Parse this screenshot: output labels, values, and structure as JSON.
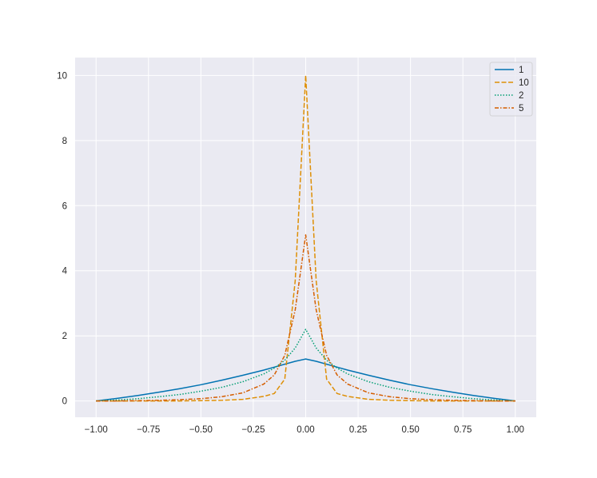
{
  "chart_data": {
    "type": "line",
    "title": "",
    "xlabel": "",
    "ylabel": "",
    "xlim": [
      -1.1,
      1.1
    ],
    "ylim": [
      -0.5,
      10.55
    ],
    "xticks": [
      -1.0,
      -0.75,
      -0.5,
      -0.25,
      0.0,
      0.25,
      0.5,
      0.75,
      1.0
    ],
    "xtick_labels": [
      "−1.00",
      "−0.75",
      "−0.50",
      "−0.25",
      "0.00",
      "0.25",
      "0.50",
      "0.75",
      "1.00"
    ],
    "yticks": [
      0,
      2,
      4,
      6,
      8,
      10
    ],
    "ytick_labels": [
      "0",
      "2",
      "4",
      "6",
      "8",
      "10"
    ],
    "grid": true,
    "background": "#eaeaf2",
    "grid_color": "#ffffff",
    "legend_position": "top-right",
    "x": [
      -1.0,
      -0.9,
      -0.8,
      -0.7,
      -0.6,
      -0.5,
      -0.4,
      -0.3,
      -0.2,
      -0.15,
      -0.1,
      -0.05,
      0.0,
      0.05,
      0.1,
      0.15,
      0.2,
      0.3,
      0.4,
      0.5,
      0.6,
      0.7,
      0.8,
      0.9,
      1.0
    ],
    "series": [
      {
        "name": "1",
        "color": "#0173b2",
        "dash": "solid",
        "values": [
          0.0,
          0.08,
          0.17,
          0.27,
          0.38,
          0.5,
          0.64,
          0.79,
          0.95,
          1.04,
          1.13,
          1.22,
          1.29,
          1.22,
          1.13,
          1.04,
          0.95,
          0.79,
          0.64,
          0.5,
          0.38,
          0.27,
          0.17,
          0.08,
          0.0
        ]
      },
      {
        "name": "10",
        "color": "#de8f05",
        "dash": "dashed",
        "values": [
          0.0,
          0.0,
          0.0,
          0.0,
          0.0,
          0.01,
          0.02,
          0.05,
          0.14,
          0.23,
          0.67,
          3.7,
          10.0,
          3.7,
          0.67,
          0.23,
          0.14,
          0.05,
          0.02,
          0.01,
          0.0,
          0.0,
          0.0,
          0.0,
          0.0
        ]
      },
      {
        "name": "2",
        "color": "#029e73",
        "dash": "dotted",
        "values": [
          0.0,
          0.03,
          0.07,
          0.13,
          0.2,
          0.3,
          0.42,
          0.59,
          0.83,
          1.01,
          1.25,
          1.63,
          2.2,
          1.63,
          1.25,
          1.01,
          0.83,
          0.59,
          0.42,
          0.3,
          0.2,
          0.13,
          0.07,
          0.03,
          0.0
        ]
      },
      {
        "name": "5",
        "color": "#d55e00",
        "dash": "dashdot",
        "values": [
          0.0,
          0.0,
          0.01,
          0.02,
          0.04,
          0.07,
          0.13,
          0.25,
          0.52,
          0.8,
          1.4,
          2.8,
          5.1,
          2.8,
          1.4,
          0.8,
          0.52,
          0.25,
          0.13,
          0.07,
          0.04,
          0.02,
          0.01,
          0.0,
          0.0
        ]
      }
    ]
  }
}
